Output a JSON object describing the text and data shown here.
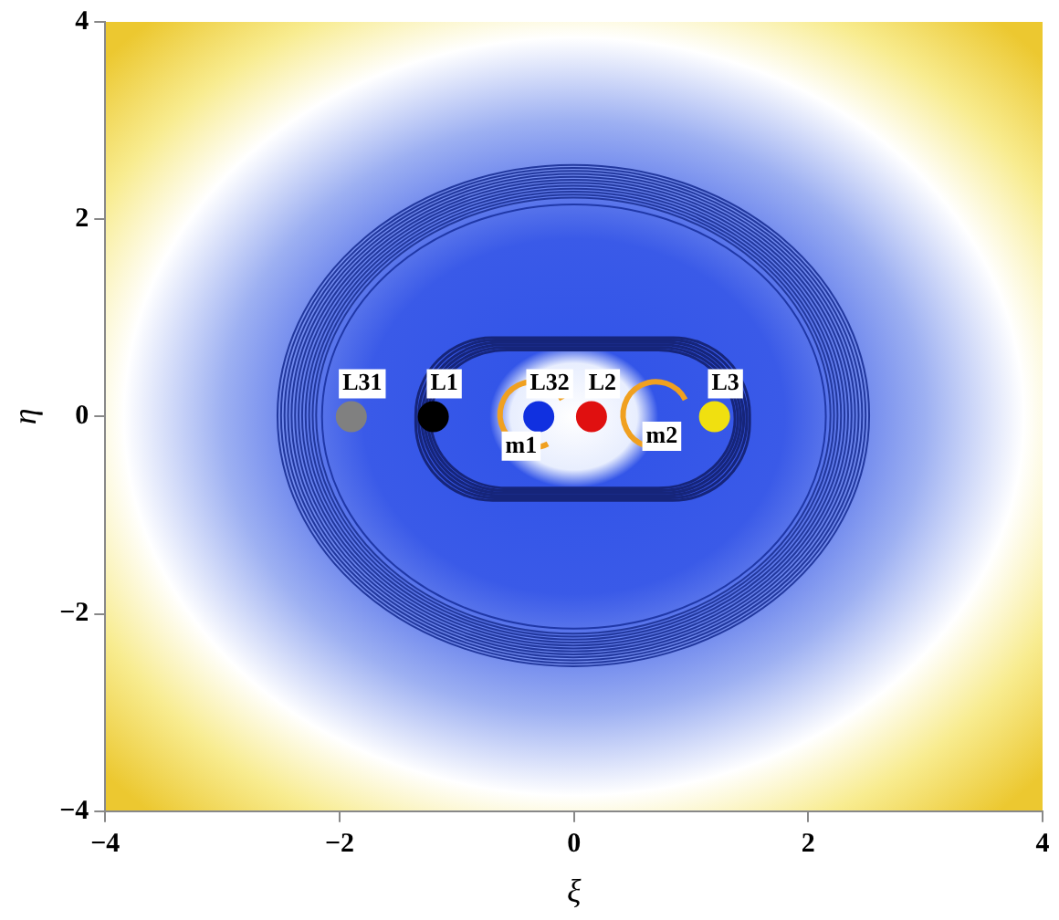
{
  "chart_data": {
    "type": "scatter",
    "xlabel": "ξ",
    "ylabel": "η",
    "xlim": [
      -4,
      4
    ],
    "ylim": [
      -4,
      4
    ],
    "xticks": [
      -4,
      -2,
      0,
      2,
      4
    ],
    "yticks": [
      -4,
      -2,
      0,
      2,
      4
    ],
    "grid": false,
    "legend": false,
    "marker": "circle",
    "series": [
      {
        "name": "L31",
        "color": "#808080",
        "x": [
          -1.9
        ],
        "values": [
          0
        ]
      },
      {
        "name": "L1",
        "color": "#000000",
        "x": [
          -1.2
        ],
        "values": [
          0
        ]
      },
      {
        "name": "L32",
        "color": "#1030e0",
        "x": [
          -0.3
        ],
        "values": [
          0
        ]
      },
      {
        "name": "L2",
        "color": "#e01010",
        "x": [
          0.15
        ],
        "values": [
          0
        ]
      },
      {
        "name": "L3",
        "color": "#f0e010",
        "x": [
          1.2
        ],
        "values": [
          0
        ]
      }
    ],
    "annotations": [
      {
        "text": "m1",
        "x": -0.45,
        "y": -0.3
      },
      {
        "text": "m2",
        "x": 0.75,
        "y": -0.2
      }
    ]
  }
}
